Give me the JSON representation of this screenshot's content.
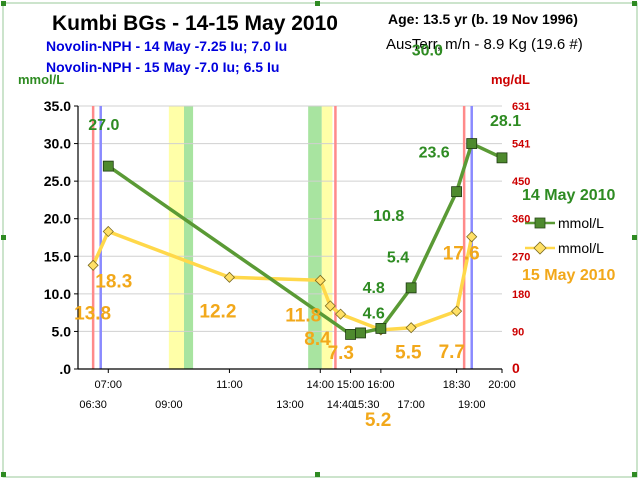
{
  "header": {
    "title": "Kumbi BGs - 14-15 May 2010",
    "age": "Age: 13.5  yr (b. 19 Nov 1996)",
    "sub_left_1": "Novolin-NPH - 14 May -7.25 Iu; 7.0 Iu",
    "sub_left_2": "Novolin-NPH - 15 May -7.0 Iu; 6.5 Iu",
    "sub_right": "AusTerr, m/n - 8.9 Kg (19.6 #)"
  },
  "chart_data": {
    "type": "line",
    "ylabel_left": "mmol/L",
    "ylabel_right": "mg/dL",
    "ylim": [
      0,
      35
    ],
    "y_ticks": [
      ".0",
      "5.0",
      "10.0",
      "15.0",
      "20.0",
      "25.0",
      "30.0",
      "35.0"
    ],
    "y_tick_values": [
      0,
      5,
      10,
      15,
      20,
      25,
      30,
      35
    ],
    "right_ticks": [
      {
        "label": "0",
        "value": 0
      },
      {
        "label": "90",
        "value": 5
      },
      {
        "label": "180",
        "value": 10
      },
      {
        "label": "270",
        "value": 15
      },
      {
        "label": "360",
        "value": 20
      },
      {
        "label": "450",
        "value": 25
      },
      {
        "label": "541",
        "value": 30
      },
      {
        "label": "631",
        "value": 35
      }
    ],
    "xlim": [
      6.0,
      20.0
    ],
    "x_ticks_upper": [
      {
        "label": "07:00",
        "t": 7.0
      },
      {
        "label": "11:00",
        "t": 11.0
      },
      {
        "label": "14:00",
        "t": 14.0
      },
      {
        "label": "15:00",
        "t": 15.0
      },
      {
        "label": "16:00",
        "t": 16.0
      },
      {
        "label": "18:30",
        "t": 18.5
      },
      {
        "label": "20:00",
        "t": 20.0
      }
    ],
    "x_ticks_lower": [
      {
        "label": "06:30",
        "t": 6.5
      },
      {
        "label": "09:00",
        "t": 9.0
      },
      {
        "label": "13:00",
        "t": 13.0
      },
      {
        "label": "14:40",
        "t": 14.667
      },
      {
        "label": "15:30",
        "t": 15.5
      },
      {
        "label": "17:00",
        "t": 17.0
      },
      {
        "label": "19:00",
        "t": 19.0
      }
    ],
    "series": [
      {
        "name": "mmol/L",
        "legend_date": "14 May 2010",
        "color": "#5a9a35",
        "marker_fill": "#4e8a2e",
        "points": [
          {
            "t": 7.0,
            "y": 27.0,
            "label": "27.0"
          },
          {
            "t": 15.0,
            "y": 4.6,
            "label": "4.6"
          },
          {
            "t": 15.33,
            "y": 4.8,
            "label": "4.8"
          },
          {
            "t": 16.0,
            "y": 5.4,
            "label": "5.4"
          },
          {
            "t": 17.0,
            "y": 10.8,
            "label": "10.8"
          },
          {
            "t": 18.5,
            "y": 23.6,
            "label": "23.6"
          },
          {
            "t": 19.0,
            "y": 30.0,
            "label": "30.0"
          },
          {
            "t": 20.0,
            "y": 28.1,
            "label": "28.1"
          }
        ]
      },
      {
        "name": "mmol/L",
        "legend_date": "15 May 2010",
        "color": "#ffd84a",
        "marker_fill": "#ffe066",
        "points": [
          {
            "t": 6.5,
            "y": 13.8,
            "label": "13.8"
          },
          {
            "t": 7.0,
            "y": 18.3,
            "label": "18.3"
          },
          {
            "t": 11.0,
            "y": 12.2,
            "label": "12.2"
          },
          {
            "t": 14.0,
            "y": 11.8,
            "label": "11.8"
          },
          {
            "t": 14.33,
            "y": 8.4,
            "label": "8.4"
          },
          {
            "t": 14.67,
            "y": 7.3,
            "label": "7.3"
          },
          {
            "t": 16.0,
            "y": 5.2,
            "label": "5.2"
          },
          {
            "t": 17.0,
            "y": 5.5,
            "label": "5.5"
          },
          {
            "t": 18.5,
            "y": 7.7,
            "label": "7.7"
          },
          {
            "t": 19.0,
            "y": 17.6,
            "label": "17.6"
          }
        ]
      }
    ],
    "bands": [
      {
        "name": "yellow",
        "t0": 9.0,
        "t1": 9.5,
        "color": "#ffffa8"
      },
      {
        "name": "green",
        "t0": 9.5,
        "t1": 9.8,
        "color": "#a8e4a0"
      },
      {
        "name": "green",
        "t0": 13.6,
        "t1": 14.05,
        "color": "#a8e4a0"
      },
      {
        "name": "yellow",
        "t0": 14.05,
        "t1": 14.4,
        "color": "#ffffa8"
      }
    ],
    "vlines": [
      {
        "t": 6.5,
        "color": "#ff8a8a"
      },
      {
        "t": 6.75,
        "color": "#8a8aff"
      },
      {
        "t": 14.5,
        "color": "#ff8a8a"
      },
      {
        "t": 18.75,
        "color": "#ff8a8a"
      },
      {
        "t": 19.0,
        "color": "#8a8aff"
      }
    ],
    "colors": {
      "green_label": "#2e8b22",
      "yellow_label": "#f2a81a",
      "right_axis": "#cc0000",
      "title_blue": "#0000dd"
    }
  }
}
